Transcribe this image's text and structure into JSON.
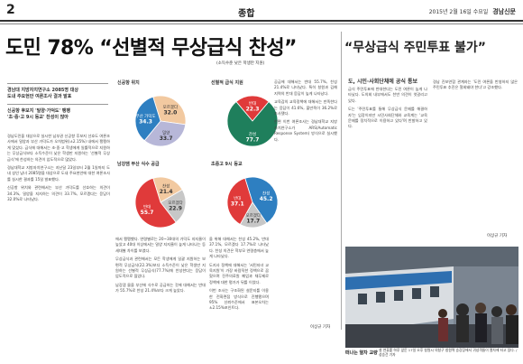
{
  "header": {
    "page_number": "2",
    "section": "종합",
    "date": "2015년 2월 16일 수요일",
    "paper_name": "경남신문"
  },
  "headline": "도민 78% “선별적 무상급식 찬성”",
  "subnote": "(소득수준 낮은 학생만 지원)",
  "lede": {
    "line1": "경남대 지방자치연구소 2085명 대상",
    "line2": "도내 주요현안 여론조사 결과 발표",
    "line3": "신공항 후보지 '밀양·가덕도' 팽팽",
    "line4": "'초·중·고 9시 등교' 찬성이 많아"
  },
  "charts": [
    {
      "title": "신공항 위치",
      "slices": [
        {
          "label": "모르겠다",
          "value": 32.0,
          "color": "#f2c9a0"
        },
        {
          "label": "밀양",
          "value": 33.7,
          "color": "#b7b7d8"
        },
        {
          "label": "부산 가덕도",
          "value": 34.3,
          "color": "#2e7fc1"
        }
      ]
    },
    {
      "title": "선별적 급식 지원",
      "slices": [
        {
          "label": "반대",
          "value": 22.3,
          "color": "#e03a3a"
        },
        {
          "label": "찬성",
          "value": 77.7,
          "color": "#1f7f5c"
        }
      ]
    },
    {
      "title": "남강댐 부산 식수 공급",
      "slices": [
        {
          "label": "찬성",
          "value": 21.4,
          "color": "#f2c9a0"
        },
        {
          "label": "모르겠다",
          "value": 22.9,
          "color": "#c7c7c7"
        },
        {
          "label": "반대",
          "value": 55.7,
          "color": "#e03a3a"
        }
      ]
    },
    {
      "title": "초중고 9시 등교",
      "slices": [
        {
          "label": "찬성",
          "value": 45.2,
          "color": "#2e7fc1"
        },
        {
          "label": "모르겠다",
          "value": 17.7,
          "color": "#c7c7c7"
        },
        {
          "label": "반대",
          "value": 37.1,
          "color": "#e03a3a"
        }
      ]
    }
  ],
  "body": {
    "col1": [
      "경남도민을 대상으로 실시한 남부권 신공항 후보지 선호도 여론조사에서 밀양과 부산 가덕도가 오차범위(±2.15%) 내에서 팽팽하게 맞섰다. 급식에 대해서는 초·중·고 학생에게 일률적으로 지원하는 무상급식보다 소득수준이 낮은 학생만 지원하는 '선별적 무상급식'에 찬성하는 의견이 압도적으로 많았다.",
      "경남대학교 지방자치연구소는 지난달 23일부터 2월 1일까지 도내 성인 남녀 2085명을 대상으로 도내 주요현안에 대한 여론조사를 실시한 결과를 15일 발표했다.",
      "신공항 위치와 관련해서는 부산 가덕도를 선호하는 의견이 34.3%, 밀양을 지지하는 의견이 33.7%, 모르겠다는 응답이 32.0%로 나타났다."
    ],
    "col2": [
      "에서 팽팽했다. 연령별로는 20~30대의 가덕도 지지율이 높았고 40대 이상에서는 밀양 지지율이 높게 나타나는 등 세대별 차이를 보였다.",
      "무상급식과 관련해서는 모든 학생에게 일괄 지원하는 보편적 무상급식(22.3%)보다 소득수준이 낮은 학생만 지원하는 선별적 무상급식(77.7%)에 찬성한다는 응답이 압도적으로 많았다.",
      "남강댐 물을 부산에 식수로 공급하는 것에 대해서는 반대가 55.7%로 찬성 21.4%보다 크게 높았다."
    ],
    "col3": [
      "을 위해 대해서는 찬성 45.2%, 반대 37.1%, 모르겠다 17.7%로 나타났다. 찬성 의견은 학부모 연령층에서 높게 나타났다.",
      "도지사 정책에 대해서는 '서민자녀 교육지원'이 가장 바람직한 정책으로 꼽혔으며 진주의료원 폐업과 채무제로 정책에 대한 평가가 뒤를 이었다.",
      "이번 조사는 구조화된 설문지를 이용한 전화면접 방식으로 진행됐으며 95% 신뢰수준에서 표본오차는 ±2.15%포인트다."
    ],
    "col4": [
      "공급에 대해서는 반대 55.7%, 찬성 21.4%로 나타났다. 특히 창원과 김해 지역의 반대 응답이 높게 나타났다.",
      "교육감의 교육정책에 대해서는 만족한다는 응답이 41.6%, 불만족이 36.2%로 조사됐다.",
      "한편 이번 여론조사는 경남대학교 지방자치연구소가 ARS(Automatic Response System) 방식으로 실시했다."
    ],
    "col5": [
      "급식 주민투표에 반대한다는 도민 여론이 높게 나타났다. 도의회 내부에서도 찬반 의견이 엇갈리고 있다.",
      "도는 '주민투표를 통해 무상급식 문제를 해결하자'는 입장이지만 시민사회단체와 교육계는 '교육 문제를 정치적으로 이용하고 있다'며 반발하고 있다.",
      "경남 진보연합 관계자는 '도민 여론을 반영하지 않은 주민투표 추진은 철회돼야 한다'고 강조했다."
    ]
  },
  "sidebar": {
    "headline": "“무상급식 주민투표 불가”",
    "subhead": "도, 시민·사회단체에 공식 통보"
  },
  "bylines": {
    "b1": "이상규 기자",
    "b2": "이상규 기자"
  },
  "photo": {
    "caption_title": "떠나는 열차 교량",
    "caption_text": "설 연휴를 하루 앞둔 17일 오후 창원시 의창구 창원역 승강장에서 귀성객들이 열차에 타고 있다. /성승건 기자"
  }
}
